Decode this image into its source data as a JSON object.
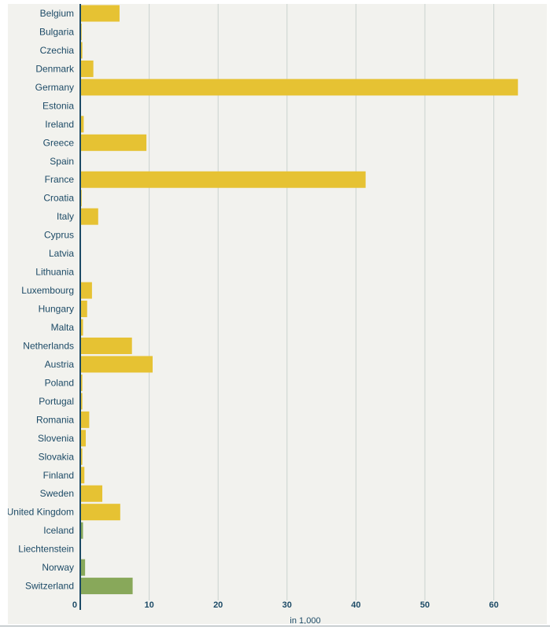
{
  "chart_data": {
    "type": "bar",
    "orientation": "horizontal",
    "categories": [
      "Belgium",
      "Bulgaria",
      "Czechia",
      "Denmark",
      "Germany",
      "Estonia",
      "Ireland",
      "Greece",
      "Spain",
      "France",
      "Croatia",
      "Italy",
      "Cyprus",
      "Latvia",
      "Lithuania",
      "Luxembourg",
      "Hungary",
      "Malta",
      "Netherlands",
      "Austria",
      "Poland",
      "Portugal",
      "Romania",
      "Slovenia",
      "Slovakia",
      "Finland",
      "Sweden",
      "United Kingdom",
      "Iceland",
      "Liechtenstein",
      "Norway",
      "Switzerland"
    ],
    "values": [
      5.7,
      0.2,
      0.3,
      1.9,
      63.5,
      0.05,
      0.5,
      9.6,
      0.05,
      41.4,
      0.2,
      2.6,
      0.1,
      0.05,
      0.05,
      1.7,
      1.0,
      0.4,
      7.5,
      10.5,
      0.3,
      0.3,
      1.3,
      0.8,
      0.3,
      0.6,
      3.2,
      5.8,
      0.4,
      0.1,
      0.7,
      7.6
    ],
    "groups": [
      "eu",
      "eu",
      "eu",
      "eu",
      "eu",
      "eu",
      "eu",
      "eu",
      "eu",
      "eu",
      "eu",
      "eu",
      "eu",
      "eu",
      "eu",
      "eu",
      "eu",
      "eu",
      "eu",
      "eu",
      "eu",
      "eu",
      "eu",
      "eu",
      "eu",
      "eu",
      "eu",
      "eu",
      "efta",
      "efta",
      "efta",
      "efta"
    ],
    "colors": {
      "eu": "#e6c233",
      "efta": "#88a85a",
      "axis": "#1c4a66",
      "grid": "#c9d3cf",
      "background": "#f2f2ee"
    },
    "xticks": [
      0,
      10,
      20,
      30,
      40,
      50,
      60
    ],
    "xlim": [
      0,
      65
    ],
    "xlabel": "in 1,000",
    "ylabel": "",
    "title": "",
    "grid": "vertical",
    "legend": "none"
  }
}
